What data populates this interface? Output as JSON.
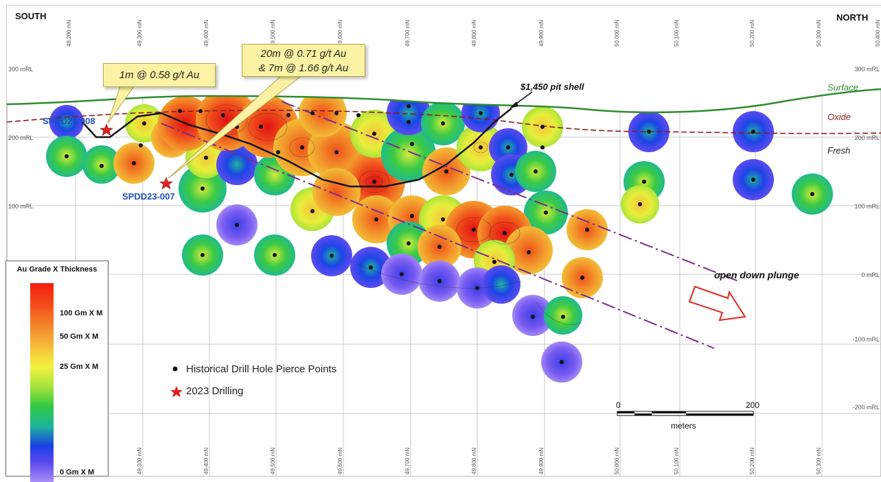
{
  "section": {
    "left_label": "SOUTH",
    "right_label": "NORTH",
    "northings_top": [
      "49,200 mN",
      "49,300 mN",
      "49,400 mN",
      "49,500 mN",
      "49,600 mN",
      "49,700 mN",
      "49,800 mN",
      "49,900 mN",
      "50,000 mN",
      "50,100 mN",
      "50,200 mN",
      "50,300 mN",
      "50,400 mN"
    ],
    "northings_bottom": [
      "49,300 mN",
      "49,400 mN",
      "49,500 mN",
      "49,600 mN",
      "49,700 mN",
      "49,800 mN",
      "49,900 mN",
      "50,000 mN",
      "50,100 mN",
      "50,200 mN",
      "50,300 mN"
    ],
    "rl_left": [
      "300 mRL",
      "200 mRL",
      "100 mRL"
    ],
    "rl_right": [
      "300 mRL",
      "200 mRL",
      "100 mRL",
      "0 mRL",
      "-100 mRL",
      "-200 mRL"
    ]
  },
  "layers": {
    "surface": "Surface",
    "oxide": "Oxide",
    "fresh": "Fresh",
    "pit_shell": "$1,450 pit shell",
    "surface_color": "#2e8b2e",
    "oxide_color": "#8b1a1a",
    "plunge_line_color": "#7b2c8b"
  },
  "holes": {
    "hole_008": "SPDD23-008",
    "hole_007": "SPDD23-007",
    "label_color": "#1f4fbf"
  },
  "callouts": {
    "c1": "1m @ 0.58 g/t Au",
    "c2_line1": "20m @ 0.71 g/t Au",
    "c2_line2": "& 7m @ 1.66 g/t Au"
  },
  "annotations": {
    "open_down_plunge": "open down plunge"
  },
  "legend": {
    "title": "Au Grade X Thickness",
    "ticks": [
      "100  Gm X M",
      "50  Gm X M",
      "25  Gm X M",
      "0  Gm X M"
    ]
  },
  "key": {
    "historical": "Historical Drill Hole Pierce Points",
    "drilling_2023": "2023 Drilling"
  },
  "scale": {
    "start": "0",
    "end": "200",
    "unit": "meters"
  }
}
